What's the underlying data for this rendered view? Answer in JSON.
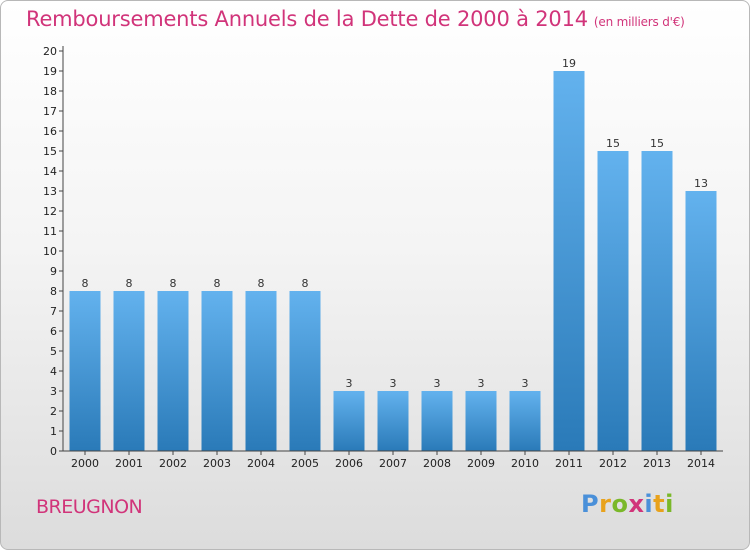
{
  "title": "Remboursements Annuels de la Dette de 2000 à 2014",
  "unit_label": "(en milliers d'€)",
  "place": "BREUGNON",
  "logo": {
    "text": "Proxiti",
    "colors": [
      "#4a90d9",
      "#e8a21c",
      "#7ab829",
      "#d1347a"
    ]
  },
  "colors": {
    "title": "#d1347a",
    "bar_light": "#63b2ee",
    "bar_dark": "#2a7ab8"
  },
  "chart_data": {
    "type": "bar",
    "title": "Remboursements Annuels de la Dette de 2000 à 2014",
    "xlabel": "",
    "ylabel": "(en milliers d'€)",
    "categories": [
      "2000",
      "2001",
      "2002",
      "2003",
      "2004",
      "2005",
      "2006",
      "2007",
      "2008",
      "2009",
      "2010",
      "2011",
      "2012",
      "2013",
      "2014"
    ],
    "values": [
      8,
      8,
      8,
      8,
      8,
      8,
      3,
      3,
      3,
      3,
      3,
      19,
      15,
      15,
      13
    ],
    "data_labels": [
      "8",
      "8",
      "8",
      "8",
      "8",
      "8",
      "3",
      "3",
      "3",
      "3",
      "3",
      "19",
      "15",
      "15",
      "13"
    ],
    "yticks": [
      "0",
      "1",
      "2",
      "3",
      "4",
      "5",
      "6",
      "7",
      "8",
      "9",
      "10",
      "11",
      "12",
      "13",
      "14",
      "15",
      "16",
      "17",
      "18",
      "19",
      "20"
    ],
    "ylim": [
      0,
      20
    ],
    "grid": false,
    "legend": "none"
  }
}
